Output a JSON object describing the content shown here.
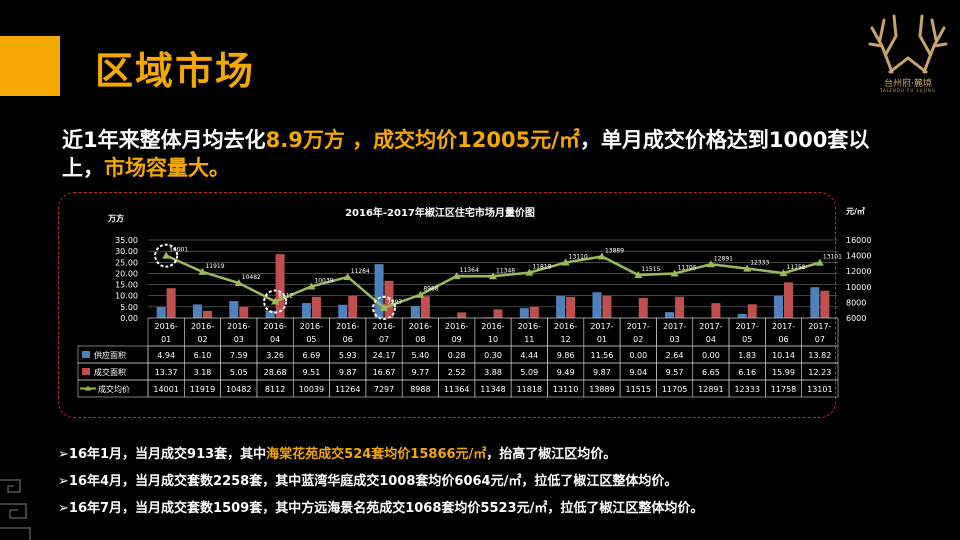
{
  "title": "区域市场",
  "logo": {
    "name": "台州府·麓境",
    "sub": "TAIZHOU FU LUJING"
  },
  "headline": {
    "p1": "近1年来整体月均去化",
    "h1": "8.9万方 ，成交均价12005元/㎡",
    "p2": "，单月成交价格达到1000套以上，",
    "h2": "市场容量大。"
  },
  "notes": [
    {
      "pre": "➢16年1月，当月成交913套，其中",
      "hl": "海棠花苑成交524套均价15866元/㎡",
      "post": "，抬高了椒江区均价。"
    },
    {
      "pre": "➢16年4月，当月成交套数2258套，其中蓝湾华庭成交1008套均价",
      "hl2": "6064元/㎡",
      "post": "，拉低了椒江区整体均价。"
    },
    {
      "pre": "➢16年7月，当月成交套数1509套，其中方远海景名苑成交1068套均价",
      "hl2": "5523元/㎡",
      "post": "，拉低了椒江区整体均价。"
    }
  ],
  "chart_data": {
    "type": "bar",
    "title": "2016年-2017年椒江区住宅市场月量价图",
    "ylabel_left": "万方",
    "ylabel_right": "元/㎡",
    "categories": [
      [
        "2016-",
        "01"
      ],
      [
        "2016-",
        "02"
      ],
      [
        "2016-",
        "03"
      ],
      [
        "2016-",
        "04"
      ],
      [
        "2016-",
        "05"
      ],
      [
        "2016-",
        "06"
      ],
      [
        "2016-",
        "07"
      ],
      [
        "2016-",
        "08"
      ],
      [
        "2016-",
        "09"
      ],
      [
        "2016-",
        "10"
      ],
      [
        "2016-",
        "11"
      ],
      [
        "2016-",
        "12"
      ],
      [
        "2017-",
        "01"
      ],
      [
        "2017-",
        "02"
      ],
      [
        "2017-",
        "03"
      ],
      [
        "2017-",
        "04"
      ],
      [
        "2017-",
        "05"
      ],
      [
        "2017-",
        "06"
      ],
      [
        "2017-",
        "07"
      ]
    ],
    "ylim_left": [
      0,
      35
    ],
    "yticks_left": [
      "0.00",
      "5.00",
      "10.00",
      "15.00",
      "20.00",
      "25.00",
      "30.00",
      "35.00"
    ],
    "ylim_right": [
      6000,
      16000
    ],
    "yticks_right": [
      "6000",
      "8000",
      "10000",
      "12000",
      "14000",
      "16000"
    ],
    "series": [
      {
        "name": "供应面积",
        "type": "bar",
        "color": "#4f81bd",
        "values": [
          4.94,
          6.1,
          7.59,
          3.26,
          6.69,
          5.93,
          24.17,
          5.4,
          0.28,
          0.3,
          4.44,
          9.86,
          11.56,
          0.0,
          2.64,
          0.0,
          1.83,
          10.14,
          13.82
        ],
        "labels": [
          "4.94",
          "6.10",
          "7.59",
          "3.26",
          "6.69",
          "5.93",
          "24.17",
          "5.40",
          "0.28",
          "0.30",
          "4.44",
          "9.86",
          "11.56",
          "0.00",
          "2.64",
          "0.00",
          "1.83",
          "10.14",
          "13.82"
        ]
      },
      {
        "name": "成交面积",
        "type": "bar",
        "color": "#c0504d",
        "values": [
          13.37,
          3.18,
          5.05,
          28.68,
          9.51,
          9.87,
          16.67,
          9.77,
          2.52,
          3.88,
          5.09,
          9.49,
          9.87,
          9.04,
          9.57,
          6.65,
          6.16,
          15.99,
          12.23
        ],
        "labels": [
          "13.37",
          "3.18",
          "5.05",
          "28.68",
          "9.51",
          "9.87",
          "16.67",
          "9.77",
          "2.52",
          "3.88",
          "5.09",
          "9.49",
          "9.87",
          "9.04",
          "9.57",
          "6.65",
          "6.16",
          "15.99",
          "12.23"
        ]
      },
      {
        "name": "成交均价",
        "type": "line",
        "color": "#9bbb59",
        "values": [
          14001,
          11919,
          10482,
          8112,
          10039,
          11264,
          7297,
          8988,
          11364,
          11348,
          11818,
          13110,
          13889,
          11515,
          11705,
          12891,
          12333,
          11758,
          13101
        ],
        "labels": [
          "14001",
          "11919",
          "10482",
          "8112",
          "10039",
          "11264",
          "7297",
          "8988",
          "11364",
          "11348",
          "11818",
          "13110",
          "13889",
          "11515",
          "11705",
          "12891",
          "12333",
          "11758",
          "13101"
        ]
      }
    ],
    "highlighted": [
      "2016-01",
      "2016-04",
      "2016-07"
    ],
    "grid": true,
    "legend": "table-below"
  }
}
